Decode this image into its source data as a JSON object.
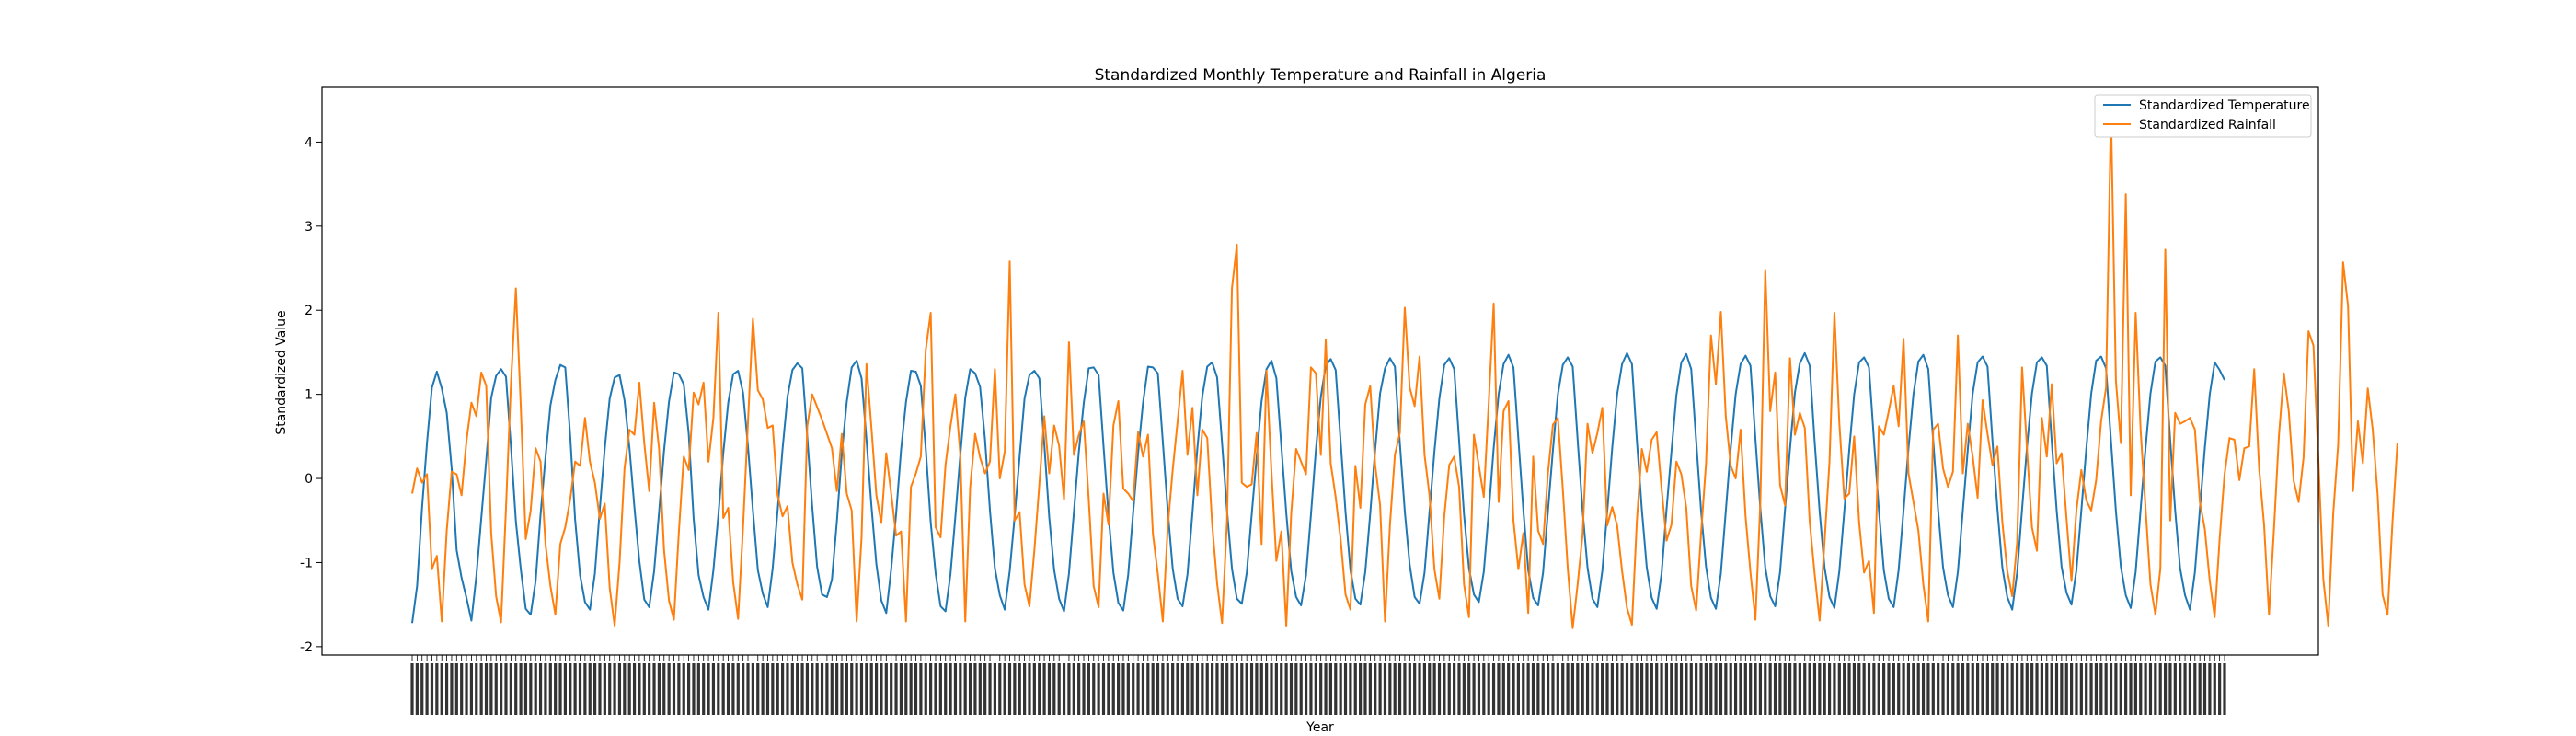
{
  "chart_data": {
    "type": "line",
    "title": "Standardized Monthly Temperature and Rainfall in Algeria",
    "xlabel": "Year",
    "ylabel": "Standardized Value",
    "ylim": [
      -2.1,
      4.65
    ],
    "yticks": [
      -2,
      -1,
      0,
      1,
      2,
      3,
      4
    ],
    "grid": false,
    "legend_position": "upper right",
    "colors": {
      "temperature": "#1f77b4",
      "rainfall": "#ff7f0e"
    },
    "series": [
      {
        "name": "Standardized Temperature",
        "key": "temperature",
        "values": [
          -1.72,
          -1.28,
          -0.35,
          0.42,
          1.08,
          1.27,
          1.07,
          0.78,
          0.12,
          -0.85,
          -1.18,
          -1.42,
          -1.69,
          -1.16,
          -0.47,
          0.22,
          0.96,
          1.22,
          1.3,
          1.21,
          0.38,
          -0.51,
          -1.08,
          -1.55,
          -1.62,
          -1.22,
          -0.43,
          0.25,
          0.87,
          1.17,
          1.35,
          1.32,
          0.51,
          -0.49,
          -1.15,
          -1.47,
          -1.56,
          -1.13,
          -0.36,
          0.36,
          0.95,
          1.2,
          1.23,
          0.93,
          0.36,
          -0.34,
          -0.98,
          -1.44,
          -1.53,
          -1.1,
          -0.4,
          0.33,
          0.91,
          1.26,
          1.24,
          1.12,
          0.53,
          -0.48,
          -1.15,
          -1.41,
          -1.56,
          -1.09,
          -0.44,
          0.3,
          0.9,
          1.24,
          1.28,
          1.02,
          0.38,
          -0.38,
          -1.09,
          -1.37,
          -1.53,
          -1.07,
          -0.38,
          0.35,
          0.97,
          1.29,
          1.37,
          1.31,
          0.5,
          -0.33,
          -1.05,
          -1.38,
          -1.41,
          -1.2,
          -0.51,
          0.29,
          0.91,
          1.32,
          1.4,
          1.19,
          0.46,
          -0.33,
          -1.02,
          -1.45,
          -1.6,
          -1.08,
          -0.42,
          0.34,
          0.91,
          1.28,
          1.27,
          1.1,
          0.35,
          -0.52,
          -1.13,
          -1.52,
          -1.58,
          -1.14,
          -0.45,
          0.28,
          0.96,
          1.3,
          1.25,
          1.09,
          0.46,
          -0.38,
          -1.07,
          -1.39,
          -1.56,
          -1.1,
          -0.45,
          0.26,
          0.95,
          1.23,
          1.28,
          1.19,
          0.41,
          -0.46,
          -1.09,
          -1.43,
          -1.58,
          -1.13,
          -0.4,
          0.32,
          0.9,
          1.31,
          1.32,
          1.23,
          0.38,
          -0.43,
          -1.12,
          -1.48,
          -1.57,
          -1.14,
          -0.4,
          0.3,
          0.9,
          1.33,
          1.32,
          1.25,
          0.44,
          -0.38,
          -1.07,
          -1.43,
          -1.52,
          -1.14,
          -0.41,
          0.36,
          0.98,
          1.33,
          1.38,
          1.2,
          0.42,
          -0.38,
          -1.07,
          -1.43,
          -1.49,
          -1.12,
          -0.43,
          0.25,
          0.92,
          1.3,
          1.4,
          1.19,
          0.39,
          -0.41,
          -1.1,
          -1.41,
          -1.51,
          -1.15,
          -0.43,
          0.34,
          0.97,
          1.34,
          1.42,
          1.29,
          0.45,
          -0.4,
          -1.09,
          -1.43,
          -1.5,
          -1.11,
          -0.42,
          0.34,
          1.01,
          1.31,
          1.43,
          1.33,
          0.42,
          -0.39,
          -1.03,
          -1.41,
          -1.49,
          -1.12,
          -0.4,
          0.32,
          0.95,
          1.35,
          1.43,
          1.3,
          0.45,
          -0.43,
          -1.07,
          -1.38,
          -1.47,
          -1.11,
          -0.4,
          0.36,
          1.0,
          1.36,
          1.47,
          1.32,
          0.47,
          -0.37,
          -1.09,
          -1.42,
          -1.51,
          -1.12,
          -0.38,
          0.34,
          1.0,
          1.35,
          1.44,
          1.33,
          0.46,
          -0.38,
          -1.06,
          -1.43,
          -1.53,
          -1.1,
          -0.39,
          0.36,
          1.0,
          1.36,
          1.49,
          1.36,
          0.45,
          -0.37,
          -1.06,
          -1.42,
          -1.55,
          -1.13,
          -0.37,
          0.32,
          0.99,
          1.38,
          1.48,
          1.3,
          0.45,
          -0.39,
          -1.05,
          -1.42,
          -1.55,
          -1.13,
          -0.39,
          0.36,
          1.0,
          1.36,
          1.46,
          1.34,
          0.47,
          -0.36,
          -1.06,
          -1.4,
          -1.52,
          -1.11,
          -0.37,
          0.35,
          1.02,
          1.37,
          1.49,
          1.34,
          0.43,
          -0.39,
          -1.06,
          -1.41,
          -1.54,
          -1.1,
          -0.39,
          0.34,
          1.0,
          1.38,
          1.44,
          1.32,
          0.46,
          -0.37,
          -1.09,
          -1.43,
          -1.53,
          -1.09,
          -0.38,
          0.36,
          1.0,
          1.39,
          1.47,
          1.3,
          0.45,
          -0.38,
          -1.06,
          -1.39,
          -1.53,
          -1.11,
          -0.38,
          0.34,
          1.01,
          1.38,
          1.45,
          1.33,
          0.45,
          -0.36,
          -1.06,
          -1.41,
          -1.56,
          -1.12,
          -0.36,
          0.38,
          1.01,
          1.38,
          1.44,
          1.34,
          0.44,
          -0.38,
          -1.05,
          -1.36,
          -1.5,
          -1.09,
          -0.38,
          0.35,
          1.01,
          1.4,
          1.45,
          1.31,
          0.45,
          -0.39,
          -1.05,
          -1.39,
          -1.54,
          -1.11,
          -0.37,
          0.36,
          1.01,
          1.39,
          1.44,
          1.34,
          0.45,
          -0.38,
          -1.07,
          -1.39,
          -1.56,
          -1.11,
          -0.37,
          0.36,
          1.0,
          1.38,
          1.29,
          1.17
        ]
      },
      {
        "name": "Standardized Rainfall",
        "key": "rainfall",
        "values": [
          -0.18,
          0.12,
          -0.05,
          0.05,
          -1.08,
          -0.92,
          -1.7,
          -0.62,
          0.08,
          0.05,
          -0.2,
          0.45,
          0.9,
          0.74,
          1.26,
          1.1,
          -0.65,
          -1.4,
          -1.71,
          -0.35,
          1.12,
          2.26,
          0.85,
          -0.72,
          -0.38,
          0.36,
          0.2,
          -0.78,
          -1.28,
          -1.62,
          -0.78,
          -0.58,
          -0.25,
          0.2,
          0.15,
          0.72,
          0.2,
          -0.05,
          -0.48,
          -0.3,
          -1.3,
          -1.75,
          -1.0,
          0.12,
          0.58,
          0.52,
          1.14,
          0.42,
          -0.15,
          0.9,
          0.35,
          -0.85,
          -1.45,
          -1.68,
          -0.64,
          0.26,
          0.1,
          1.02,
          0.88,
          1.14,
          0.2,
          0.72,
          1.97,
          -0.47,
          -0.35,
          -1.23,
          -1.67,
          -0.58,
          0.67,
          1.9,
          1.05,
          0.94,
          0.6,
          0.63,
          -0.2,
          -0.45,
          -0.33,
          -1.0,
          -1.26,
          -1.44,
          0.62,
          1.0,
          0.85,
          0.7,
          0.53,
          0.36,
          -0.15,
          0.53,
          -0.18,
          -0.38,
          -1.7,
          -0.7,
          1.36,
          0.6,
          -0.2,
          -0.53,
          0.3,
          -0.18,
          -0.68,
          -0.63,
          -1.7,
          -0.1,
          0.06,
          0.26,
          1.53,
          1.97,
          -0.58,
          -0.7,
          0.16,
          0.62,
          1.0,
          0.28,
          -1.7,
          -0.1,
          0.53,
          0.25,
          0.06,
          0.2,
          1.3,
          0.0,
          0.32,
          2.58,
          -0.5,
          -0.4,
          -1.26,
          -1.52,
          -0.85,
          -0.07,
          0.74,
          0.06,
          0.63,
          0.39,
          -0.25,
          1.62,
          0.28,
          0.52,
          0.68,
          -0.25,
          -1.28,
          -1.53,
          -0.18,
          -0.55,
          0.63,
          0.92,
          -0.12,
          -0.18,
          -0.27,
          0.55,
          0.26,
          0.52,
          -0.66,
          -1.14,
          -1.7,
          -0.58,
          0.1,
          0.68,
          1.28,
          0.28,
          0.84,
          -0.2,
          0.58,
          0.48,
          -0.55,
          -1.25,
          -1.72,
          -0.5,
          2.26,
          2.78,
          -0.05,
          -0.1,
          -0.07,
          0.54,
          -0.78,
          1.28,
          0.08,
          -0.98,
          -0.63,
          -1.75,
          -0.42,
          0.35,
          0.2,
          0.05,
          1.32,
          1.25,
          0.28,
          1.65,
          0.18,
          -0.22,
          -0.72,
          -1.38,
          -1.56,
          0.15,
          -0.35,
          0.88,
          1.1,
          0.16,
          -0.32,
          -1.7,
          -0.55,
          0.28,
          0.54,
          2.03,
          1.08,
          0.86,
          1.45,
          0.28,
          -0.2,
          -1.08,
          -1.43,
          -0.45,
          0.16,
          0.26,
          -0.1,
          -1.26,
          -1.65,
          0.52,
          0.15,
          -0.22,
          0.9,
          2.08,
          -0.28,
          0.8,
          0.92,
          -0.5,
          -1.08,
          -0.65,
          -1.6,
          0.26,
          -0.62,
          -0.78,
          0.07,
          0.64,
          0.72,
          -0.13,
          -1.07,
          -1.78,
          -1.26,
          -0.67,
          0.65,
          0.3,
          0.54,
          0.84,
          -0.56,
          -0.34,
          -0.56,
          -1.1,
          -1.54,
          -1.74,
          -0.5,
          0.35,
          0.08,
          0.46,
          0.55,
          -0.12,
          -0.74,
          -0.55,
          0.2,
          0.05,
          -0.35,
          -1.28,
          -1.57,
          -0.65,
          0.18,
          1.7,
          1.12,
          1.98,
          0.74,
          0.15,
          0.0,
          0.58,
          -0.45,
          -1.12,
          -1.68,
          -0.28,
          2.48,
          0.8,
          1.26,
          -0.08,
          -0.32,
          1.43,
          0.52,
          0.78,
          0.6,
          -0.52,
          -1.14,
          -1.69,
          -0.75,
          0.2,
          1.97,
          0.65,
          -0.24,
          -0.18,
          0.5,
          -0.52,
          -1.12,
          -0.98,
          -1.6,
          0.62,
          0.52,
          0.8,
          1.1,
          0.62,
          1.66,
          0.06,
          -0.28,
          -0.62,
          -1.26,
          -1.7,
          0.58,
          0.65,
          0.12,
          -0.1,
          0.08,
          1.7,
          0.06,
          0.65,
          0.26,
          -0.23,
          0.93,
          0.53,
          0.16,
          0.38,
          -0.52,
          -1.1,
          -1.4,
          -0.76,
          1.32,
          0.34,
          -0.58,
          -0.86,
          0.72,
          0.26,
          1.12,
          0.18,
          0.3,
          -0.48,
          -1.22,
          -0.38,
          0.1,
          -0.26,
          -0.38,
          -0.02,
          0.68,
          1.08,
          4.38,
          1.16,
          0.42,
          3.38,
          -0.2,
          1.97,
          0.58,
          -0.35,
          -1.26,
          -1.62,
          -1.07,
          2.72,
          -0.5,
          0.78,
          0.65,
          0.68,
          0.72,
          0.58,
          -0.28,
          -0.6,
          -1.22,
          -1.65,
          -0.72,
          0.05,
          0.48,
          0.46,
          -0.02,
          0.36,
          0.38,
          1.3,
          0.12,
          -0.55,
          -1.62,
          -0.6,
          0.5,
          1.25,
          0.8,
          -0.03,
          -0.28,
          0.25,
          1.75,
          1.58,
          0.22,
          -1.2,
          -1.75,
          -0.42,
          0.4,
          2.57,
          2.05,
          -0.15,
          0.68,
          0.18,
          1.07,
          0.58,
          -0.2,
          -1.38,
          -1.62,
          -0.52,
          0.42
        ]
      }
    ]
  }
}
